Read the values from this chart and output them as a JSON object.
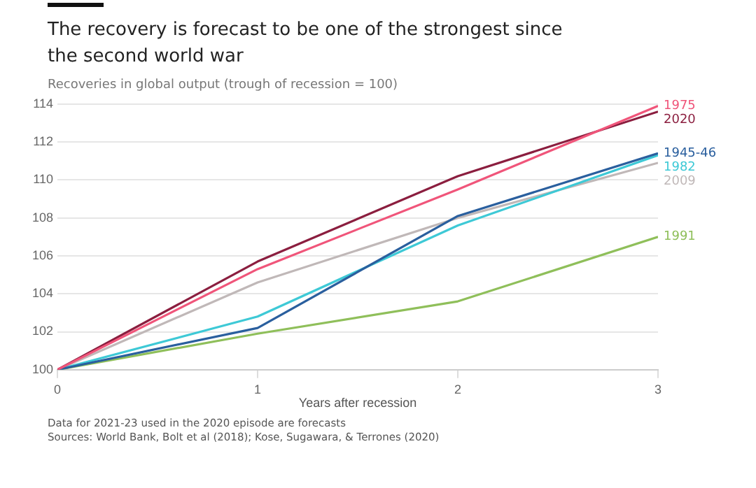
{
  "chart_data": {
    "type": "line",
    "title": "The recovery is forecast to be one of the strongest since the second world war",
    "subtitle": "Recoveries in global output (trough of recession = 100)",
    "xlabel": "Years after recession",
    "x": [
      0,
      1,
      2,
      3
    ],
    "xlim": [
      0,
      3
    ],
    "xticks": [
      0,
      1,
      2,
      3
    ],
    "ylim": [
      100,
      114
    ],
    "yticks": [
      100,
      102,
      104,
      106,
      108,
      110,
      112,
      114
    ],
    "grid": "y",
    "legend": false,
    "marker": "none",
    "line_style": "solid",
    "series": [
      {
        "name": "1975",
        "color": "#f0557a",
        "values": [
          100,
          105.3,
          109.5,
          113.9
        ]
      },
      {
        "name": "2020",
        "color": "#8b1e3f",
        "values": [
          100,
          105.7,
          110.2,
          113.6
        ]
      },
      {
        "name": "1945-46",
        "color": "#2a5f9e",
        "values": [
          100,
          102.2,
          108.1,
          111.4
        ]
      },
      {
        "name": "1982",
        "color": "#3ec9d6",
        "values": [
          100,
          102.8,
          107.6,
          111.3
        ]
      },
      {
        "name": "2009",
        "color": "#c0b8b8",
        "values": [
          100,
          104.6,
          108,
          110.9
        ]
      },
      {
        "name": "1991",
        "color": "#8fbf5a",
        "values": [
          100,
          101.9,
          103.6,
          107
        ]
      }
    ],
    "annotations": [
      "Data for 2021-23 used in the 2020 episode are forecasts",
      "Sources: World Bank, Bolt et al (2018); Kose, Sugawara, & Terrones (2020)"
    ]
  }
}
